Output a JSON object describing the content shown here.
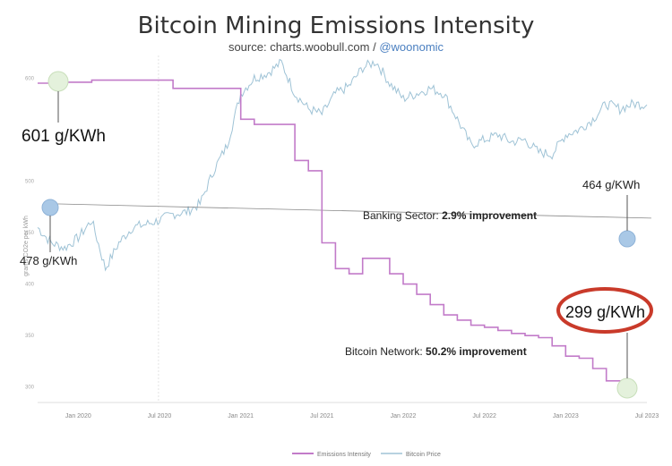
{
  "title": "Bitcoin Mining Emissions Intensity",
  "source_prefix": "source: charts.woobull.com / ",
  "source_handle": "@woonomic",
  "chart_data": {
    "type": "line",
    "title": "Bitcoin Mining Emissions Intensity",
    "ylabel": "grams CO2e per kWh",
    "xlabel": "",
    "ylim": [
      285,
      615
    ],
    "yticks": [
      600,
      500,
      450,
      400,
      350,
      300
    ],
    "xtick_labels": [
      "Jan 2020",
      "Jul 2020",
      "Jan 2021",
      "Jul 2021",
      "Jan 2022",
      "Jul 2022",
      "Jan 2023",
      "Jul 2023"
    ],
    "x_range": [
      "2019-10",
      "2023-07"
    ],
    "series": [
      {
        "name": "Emissions Intensity",
        "color": "#c27bc9",
        "points": [
          [
            "2019-10",
            595
          ],
          [
            "2019-12",
            596
          ],
          [
            "2020-01",
            596
          ],
          [
            "2020-02",
            598
          ],
          [
            "2020-07",
            598
          ],
          [
            "2020-08",
            590
          ],
          [
            "2020-12",
            590
          ],
          [
            "2021-01",
            560
          ],
          [
            "2021-02",
            555
          ],
          [
            "2021-05",
            555
          ],
          [
            "2021-05",
            520
          ],
          [
            "2021-06",
            510
          ],
          [
            "2021-07",
            510
          ],
          [
            "2021-07",
            440
          ],
          [
            "2021-08",
            415
          ],
          [
            "2021-09",
            410
          ],
          [
            "2021-10",
            425
          ],
          [
            "2021-11",
            425
          ],
          [
            "2021-12",
            410
          ],
          [
            "2022-01",
            400
          ],
          [
            "2022-02",
            390
          ],
          [
            "2022-03",
            380
          ],
          [
            "2022-04",
            370
          ],
          [
            "2022-05",
            365
          ],
          [
            "2022-06",
            360
          ],
          [
            "2022-07",
            358
          ],
          [
            "2022-08",
            355
          ],
          [
            "2022-09",
            352
          ],
          [
            "2022-10",
            350
          ],
          [
            "2022-11",
            348
          ],
          [
            "2022-12",
            340
          ],
          [
            "2023-01",
            330
          ],
          [
            "2023-02",
            328
          ],
          [
            "2023-03",
            325
          ],
          [
            "2023-03",
            318
          ],
          [
            "2023-04",
            316
          ],
          [
            "2023-04",
            306
          ],
          [
            "2023-05",
            303
          ],
          [
            "2023-06",
            304
          ],
          [
            "2023-06",
            299
          ]
        ]
      },
      {
        "name": "Bitcoin Price",
        "color": "#9fc3d6",
        "points": [
          [
            "2019-10",
            455
          ],
          [
            "2019-11",
            440
          ],
          [
            "2019-12",
            435
          ],
          [
            "2020-01",
            445
          ],
          [
            "2020-02",
            462
          ],
          [
            "2020-03",
            415
          ],
          [
            "2020-04",
            440
          ],
          [
            "2020-05",
            455
          ],
          [
            "2020-06",
            458
          ],
          [
            "2020-07",
            462
          ],
          [
            "2020-08",
            468
          ],
          [
            "2020-09",
            470
          ],
          [
            "2020-10",
            478
          ],
          [
            "2020-11",
            510
          ],
          [
            "2020-12",
            535
          ],
          [
            "2021-01",
            585
          ],
          [
            "2021-02",
            600
          ],
          [
            "2021-03",
            605
          ],
          [
            "2021-04",
            615
          ],
          [
            "2021-05",
            585
          ],
          [
            "2021-06",
            570
          ],
          [
            "2021-07",
            565
          ],
          [
            "2021-08",
            585
          ],
          [
            "2021-09",
            592
          ],
          [
            "2021-10",
            610
          ],
          [
            "2021-11",
            616
          ],
          [
            "2021-12",
            595
          ],
          [
            "2022-01",
            580
          ],
          [
            "2022-02",
            585
          ],
          [
            "2022-03",
            590
          ],
          [
            "2022-04",
            585
          ],
          [
            "2022-05",
            560
          ],
          [
            "2022-06",
            535
          ],
          [
            "2022-07",
            540
          ],
          [
            "2022-08",
            545
          ],
          [
            "2022-09",
            538
          ],
          [
            "2022-10",
            540
          ],
          [
            "2022-11",
            528
          ],
          [
            "2022-12",
            526
          ],
          [
            "2023-01",
            545
          ],
          [
            "2023-02",
            550
          ],
          [
            "2023-03",
            560
          ],
          [
            "2023-04",
            575
          ],
          [
            "2023-05",
            570
          ],
          [
            "2023-06",
            575
          ],
          [
            "2023-07",
            574
          ]
        ]
      },
      {
        "name": "Banking Sector",
        "color": "#888888",
        "points": [
          [
            "2019-10",
            478
          ],
          [
            "2023-06",
            464
          ]
        ]
      }
    ],
    "annotations": {
      "bitcoin_start": "601 g/KWh",
      "banking_start": "478 g/KWh",
      "banking_end": "464 g/KWh",
      "bitcoin_end": "299 g/KWh",
      "banking_label": "Banking Sector: ",
      "banking_value": "2.9% improvement",
      "bitcoin_label": "Bitcoin Network: ",
      "bitcoin_value": "50.2% improvement"
    },
    "legend": {
      "position": "bottom-center",
      "items": [
        "Emissions Intensity",
        "Bitcoin Price"
      ]
    }
  }
}
